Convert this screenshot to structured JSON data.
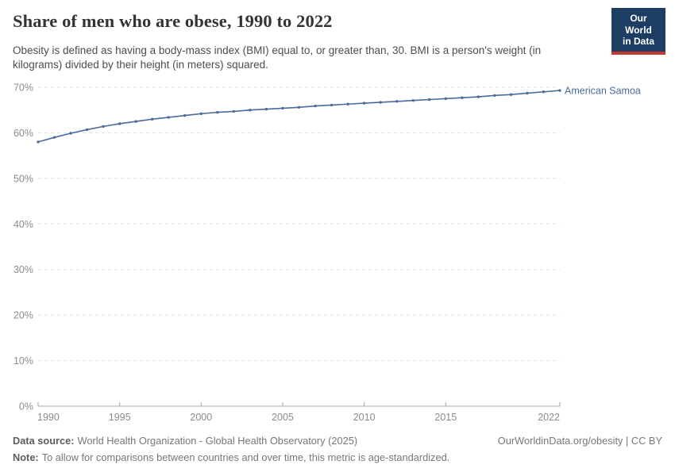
{
  "header": {
    "title": "Share of men who are obese, 1990 to 2022",
    "subtitle": "Obesity is defined as having a body-mass index (BMI) equal to, or greater than, 30. BMI is a person's weight (in kilograms) divided by their height (in meters) squared.",
    "logo": {
      "line1": "Our World",
      "line2": "in Data",
      "bg_color": "#1d3d63",
      "accent_color": "#c4372e"
    }
  },
  "chart_data": {
    "type": "line",
    "title": "Share of men who are obese, 1990 to 2022",
    "xlabel": "",
    "ylabel": "",
    "xlim": [
      1990,
      2022
    ],
    "ylim": [
      0,
      70
    ],
    "yticks": [
      0,
      10,
      20,
      30,
      40,
      50,
      60,
      70
    ],
    "ytick_suffix": "%",
    "xticks": [
      1990,
      1995,
      2000,
      2005,
      2010,
      2015,
      2022
    ],
    "grid": "horizontal-dashed",
    "legend_position": "end-of-line-label",
    "series": [
      {
        "name": "American Samoa",
        "color": "#4C6A9C",
        "x": [
          1990,
          1991,
          1992,
          1993,
          1994,
          1995,
          1996,
          1997,
          1998,
          1999,
          2000,
          2001,
          2002,
          2003,
          2004,
          2005,
          2006,
          2007,
          2008,
          2009,
          2010,
          2011,
          2012,
          2013,
          2014,
          2015,
          2016,
          2017,
          2018,
          2019,
          2020,
          2021,
          2022
        ],
        "values": [
          58.0,
          59.0,
          59.9,
          60.7,
          61.4,
          62.0,
          62.5,
          63.0,
          63.4,
          63.8,
          64.2,
          64.5,
          64.7,
          65.0,
          65.2,
          65.4,
          65.6,
          65.9,
          66.1,
          66.3,
          66.5,
          66.7,
          66.9,
          67.1,
          67.3,
          67.5,
          67.7,
          67.9,
          68.2,
          68.4,
          68.7,
          69.0,
          69.3
        ]
      }
    ]
  },
  "footer": {
    "data_source_label": "Data source:",
    "data_source": "World Health Organization - Global Health Observatory (2025)",
    "note_label": "Note:",
    "note": "To allow for comparisons between countries and over time, this metric is age-standardized.",
    "link": "OurWorldinData.org/obesity | CC BY"
  }
}
